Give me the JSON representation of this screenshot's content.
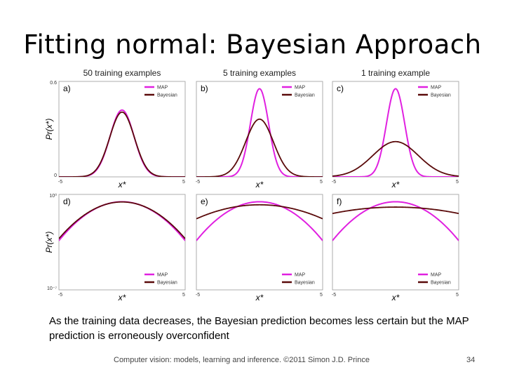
{
  "slide": {
    "title": "Fitting normal: Bayesian Approach",
    "caption": "As the training data decreases, the Bayesian prediction becomes less certain but the MAP prediction is erroneously overconfident",
    "footer": "Computer vision: models, learning and inference. ©2011 Simon J.D. Prince",
    "page_number": "34"
  },
  "colors": {
    "map": "#e020e0",
    "bayesian": "#5a0a0a"
  },
  "chart_data": [
    {
      "type": "line",
      "panel_label": "a)",
      "title": "50 training examples",
      "ylabel": "Pr(x*)",
      "xlabel": "x*",
      "xlim": [
        -5,
        5
      ],
      "x_ticks": [
        "-5",
        "5"
      ],
      "ylim": [
        0,
        0.6
      ],
      "y_ticks": [
        "0.6",
        "0"
      ],
      "y_scale": "linear",
      "legend": [
        "MAP",
        "Bayesian"
      ],
      "legend_position": "top-right",
      "series": [
        {
          "name": "MAP",
          "mean": 0.0,
          "sd": 0.95
        },
        {
          "name": "Bayesian",
          "mean": 0.0,
          "sd": 0.98
        }
      ]
    },
    {
      "type": "line",
      "panel_label": "b)",
      "title": "5 training examples",
      "xlabel": "x*",
      "xlim": [
        -5,
        5
      ],
      "x_ticks": [
        "-5",
        "5"
      ],
      "ylim": [
        0,
        0.6
      ],
      "y_scale": "linear",
      "legend": [
        "MAP",
        "Bayesian"
      ],
      "legend_position": "top-right",
      "series": [
        {
          "name": "MAP",
          "mean": 0.0,
          "sd": 0.72
        },
        {
          "name": "Bayesian",
          "mean": 0.0,
          "sd": 1.1
        }
      ]
    },
    {
      "type": "line",
      "panel_label": "c)",
      "title": "1 training example",
      "xlabel": "x*",
      "xlim": [
        -5,
        5
      ],
      "x_ticks": [
        "-5",
        "5"
      ],
      "ylim": [
        0,
        0.6
      ],
      "y_scale": "linear",
      "legend": [
        "MAP",
        "Bayesian"
      ],
      "legend_position": "top-right",
      "series": [
        {
          "name": "MAP",
          "mean": 0.0,
          "sd": 0.72
        },
        {
          "name": "Bayesian",
          "mean": 0.0,
          "sd": 1.8
        }
      ]
    },
    {
      "type": "line",
      "panel_label": "d)",
      "ylabel": "Pr(x*)",
      "xlabel": "x*",
      "xlim": [
        -5,
        5
      ],
      "x_ticks": [
        "-5",
        "5"
      ],
      "ylim_log10": [
        -7,
        0
      ],
      "y_ticks": [
        "10⁰",
        "10⁻⁷"
      ],
      "y_scale": "log",
      "legend": [
        "MAP",
        "Bayesian"
      ],
      "legend_position": "bottom-right",
      "series": [
        {
          "name": "MAP",
          "mean": 0.0,
          "sd": 1.38
        },
        {
          "name": "Bayesian",
          "mean": 0.0,
          "sd": 1.42
        }
      ]
    },
    {
      "type": "line",
      "panel_label": "e)",
      "xlabel": "x*",
      "xlim": [
        -5,
        5
      ],
      "x_ticks": [
        "-5",
        "5"
      ],
      "ylim_log10": [
        -7,
        0
      ],
      "y_scale": "log",
      "legend": [
        "MAP",
        "Bayesian"
      ],
      "legend_position": "bottom-right",
      "series": [
        {
          "name": "MAP",
          "mean": 0.0,
          "sd": 1.38
        },
        {
          "name": "Bayesian",
          "mean": 0.0,
          "sd": 2.3
        }
      ]
    },
    {
      "type": "line",
      "panel_label": "f)",
      "xlabel": "x*",
      "xlim": [
        -5,
        5
      ],
      "x_ticks": [
        "-5",
        "5"
      ],
      "ylim_log10": [
        -7,
        0
      ],
      "y_scale": "log",
      "legend": [
        "MAP",
        "Bayesian"
      ],
      "legend_position": "bottom-right",
      "series": [
        {
          "name": "MAP",
          "mean": 0.0,
          "sd": 1.38
        },
        {
          "name": "Bayesian",
          "mean": 0.0,
          "sd": 3.4
        }
      ]
    }
  ]
}
